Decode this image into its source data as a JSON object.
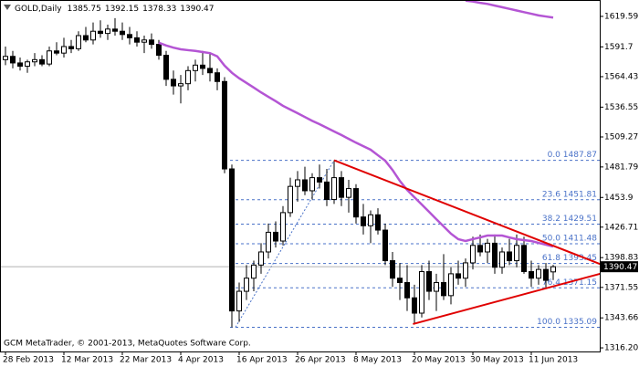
{
  "chart_data": {
    "type": "candlestick",
    "symbol": "GOLD,Daily",
    "watermark": "GCM MetaTrader, © 2001-2013, MetaQuotes Software Corp.",
    "categories": [
      "28 Feb 2013",
      null,
      null,
      null,
      null,
      null,
      null,
      null,
      "12 Mar 2013",
      null,
      null,
      null,
      null,
      null,
      null,
      null,
      "22 Mar 2013",
      null,
      null,
      null,
      null,
      null,
      null,
      null,
      "4 Apr 2013",
      null,
      null,
      null,
      null,
      null,
      null,
      null,
      "16 Apr 2013",
      null,
      null,
      null,
      null,
      null,
      null,
      null,
      "26 Apr 2013",
      null,
      null,
      null,
      null,
      null,
      null,
      null,
      "8 May 2013",
      null,
      null,
      null,
      null,
      null,
      null,
      null,
      "20 May 2013",
      null,
      null,
      null,
      null,
      null,
      null,
      null,
      "30 May 2013",
      null,
      null,
      null,
      null,
      null,
      null,
      null,
      "11 Jun 2013",
      null,
      null,
      null
    ],
    "open": [
      1580,
      1583,
      1577,
      1574,
      1578,
      1580,
      1576,
      1588,
      1586,
      1592,
      1590,
      1602,
      1598,
      1606,
      1604,
      1608,
      1606,
      1603,
      1600,
      1596,
      1598,
      1594,
      1584,
      1562,
      1556,
      1558,
      1570,
      1575,
      1572,
      1568,
      1560,
      1480,
      1350,
      1368,
      1380,
      1392,
      1404,
      1422,
      1414,
      1440,
      1464,
      1470,
      1460,
      1472,
      1468,
      1452,
      1472,
      1454,
      1462,
      1436,
      1428,
      1438,
      1424,
      1396,
      1380,
      1376,
      1362,
      1348,
      1386,
      1368,
      1376,
      1364,
      1384,
      1380,
      1394,
      1410,
      1404,
      1412,
      1390,
      1404,
      1396,
      1410,
      1386,
      1380,
      1388,
      1385.75
    ],
    "high": [
      1592,
      1588,
      1582,
      1580,
      1586,
      1584,
      1592,
      1596,
      1600,
      1598,
      1606,
      1610,
      1614,
      1616,
      1612,
      1618,
      1614,
      1610,
      1606,
      1602,
      1604,
      1598,
      1588,
      1570,
      1566,
      1574,
      1580,
      1588,
      1586,
      1572,
      1564,
      1484,
      1376,
      1392,
      1396,
      1412,
      1430,
      1432,
      1446,
      1472,
      1478,
      1482,
      1476,
      1484,
      1480,
      1487.87,
      1478,
      1470,
      1466,
      1448,
      1442,
      1444,
      1430,
      1404,
      1394,
      1392,
      1374,
      1392,
      1396,
      1384,
      1402,
      1390,
      1396,
      1398,
      1418,
      1420,
      1416,
      1420,
      1408,
      1416,
      1420,
      1418,
      1396,
      1392,
      1394,
      1392.15
    ],
    "low": [
      1575,
      1572,
      1570,
      1568,
      1574,
      1574,
      1574,
      1584,
      1582,
      1586,
      1588,
      1596,
      1594,
      1600,
      1598,
      1602,
      1598,
      1594,
      1592,
      1586,
      1590,
      1580,
      1556,
      1548,
      1540,
      1552,
      1560,
      1566,
      1560,
      1552,
      1476,
      1335.09,
      1340,
      1360,
      1368,
      1384,
      1398,
      1408,
      1410,
      1436,
      1450,
      1456,
      1452,
      1462,
      1446,
      1448,
      1446,
      1440,
      1430,
      1420,
      1412,
      1420,
      1392,
      1372,
      1360,
      1350,
      1338,
      1344,
      1360,
      1350,
      1360,
      1356,
      1374,
      1372,
      1388,
      1400,
      1394,
      1384,
      1384,
      1392,
      1390,
      1384,
      1372,
      1374,
      1370,
      1378.33
    ],
    "close": [
      1583,
      1577,
      1574,
      1578,
      1580,
      1576,
      1588,
      1586,
      1592,
      1590,
      1602,
      1598,
      1606,
      1604,
      1608,
      1606,
      1603,
      1600,
      1596,
      1598,
      1594,
      1584,
      1562,
      1556,
      1558,
      1570,
      1575,
      1572,
      1568,
      1560,
      1480,
      1350,
      1368,
      1380,
      1392,
      1404,
      1422,
      1414,
      1440,
      1464,
      1470,
      1460,
      1472,
      1468,
      1452,
      1472,
      1454,
      1462,
      1436,
      1428,
      1438,
      1424,
      1396,
      1380,
      1376,
      1362,
      1348,
      1386,
      1368,
      1376,
      1364,
      1384,
      1380,
      1394,
      1410,
      1404,
      1412,
      1390,
      1404,
      1396,
      1410,
      1386,
      1380,
      1388,
      1378,
      1390.47
    ],
    "moving_averages": [
      {
        "color": "#b455d4",
        "values": [
          null,
          null,
          null,
          null,
          null,
          null,
          null,
          null,
          null,
          null,
          null,
          null,
          null,
          null,
          null,
          null,
          null,
          null,
          null,
          null,
          null,
          1595.5,
          1593,
          1591,
          1589.5,
          1588.7,
          1588,
          1587,
          1586,
          1583,
          1574.5,
          1568,
          1563,
          1558.7,
          1554.4,
          1550,
          1546,
          1542,
          1537.7,
          1534.3,
          1531,
          1527.5,
          1524,
          1521,
          1517.6,
          1514.3,
          1511,
          1507.5,
          1504,
          1500.8,
          1497.6,
          1492.5,
          1487.5,
          1479,
          1469,
          1460.8,
          1454,
          1447.4,
          1440.7,
          1434,
          1427.4,
          1420.7,
          1415.7,
          1414,
          1415.7,
          1417.3,
          1419,
          1419,
          1419,
          1417.3,
          1415.7,
          1414.8,
          1414,
          1412.3,
          1410.6,
          1409
        ]
      },
      {
        "color": "#b455d4",
        "values": [
          null,
          null,
          null,
          null,
          null,
          null,
          null,
          null,
          null,
          null,
          null,
          null,
          null,
          null,
          null,
          null,
          null,
          null,
          null,
          null,
          null,
          null,
          null,
          null,
          null,
          null,
          null,
          null,
          null,
          null,
          null,
          null,
          null,
          null,
          null,
          null,
          null,
          null,
          null,
          null,
          null,
          null,
          null,
          null,
          null,
          null,
          null,
          null,
          null,
          null,
          null,
          null,
          null,
          null,
          null,
          null,
          null,
          null,
          null,
          null,
          null,
          null,
          null,
          1634,
          1633.2,
          1632,
          1631,
          1629.5,
          1628,
          1626.5,
          1625,
          1623.5,
          1622,
          1620.5,
          1619.5,
          1618.5
        ]
      }
    ],
    "fibonacci": {
      "color": "#4a72c8",
      "anchors": [
        [
          31.5,
          1335.09
        ],
        [
          45,
          1487.87
        ]
      ],
      "levels": [
        {
          "value": 1487.87,
          "label": "0.0 1487.87"
        },
        {
          "value": 1451.81,
          "label": "23.6 1451.81"
        },
        {
          "value": 1429.51,
          "label": "38.2 1429.51"
        },
        {
          "value": 1411.48,
          "label": "50.0 1411.48"
        },
        {
          "value": 1393.45,
          "label": "61.8 1393.45"
        },
        {
          "value": 1371.15,
          "label": "76.4 1371.15"
        },
        {
          "value": 1335.09,
          "label": "100.0 1335.09"
        }
      ]
    },
    "trendlines": [
      {
        "color": "#e00000",
        "points": [
          [
            45,
            1487.87
          ],
          [
            81.4,
            1393
          ]
        ]
      },
      {
        "color": "#e00000",
        "points": [
          [
            55.8,
            1338
          ],
          [
            81.4,
            1384
          ]
        ]
      }
    ],
    "ylim": [
      1312.9,
      1634.6
    ],
    "yticks": [
      1619.59,
      1591.7,
      1564.43,
      1536.55,
      1509.27,
      1481.79,
      1453.9,
      1426.71,
      1398.83,
      1371.55,
      1343.66,
      {
        "value": 1316.2,
        "label": "1316.20"
      }
    ]
  }
}
